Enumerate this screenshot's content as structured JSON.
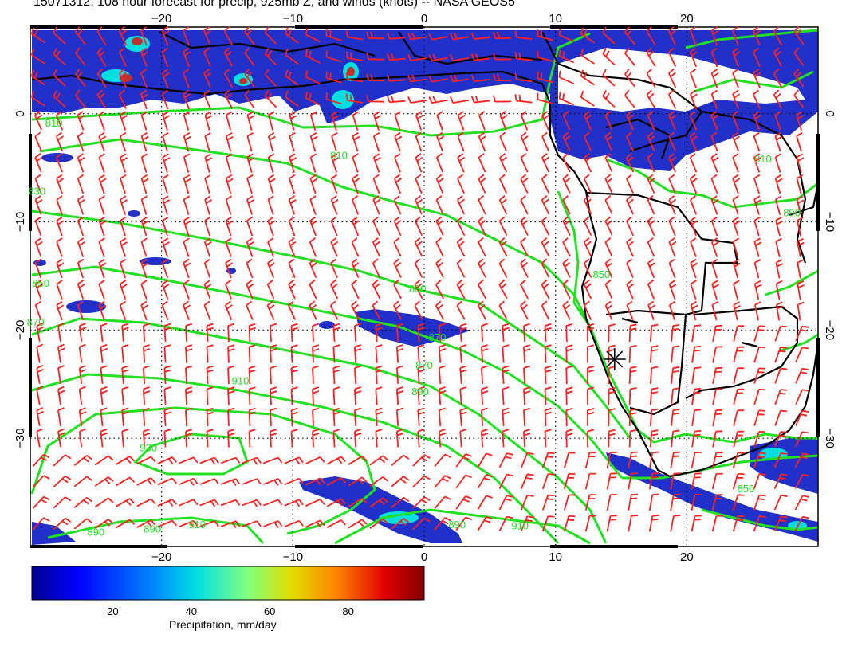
{
  "title": "15071312, 108 hour forecast for precip, 925mb Z, and winds (knots) -- NASA GEOS5",
  "map": {
    "lon_range": [
      -30,
      30
    ],
    "lat_range": [
      -40,
      8
    ],
    "lon_ticks": [
      -20,
      -10,
      0,
      10,
      20
    ],
    "lon_tick_labels": [
      "−20",
      "−10",
      "0",
      "10",
      "20"
    ],
    "lat_ticks": [
      0,
      -10,
      -20,
      -30
    ],
    "lat_tick_labels": [
      "0",
      "−10",
      "−20",
      "−30"
    ],
    "grid": "dotted",
    "colors": {
      "contour": "#22e022",
      "wind_barb": "#ff2020",
      "coast": "#000000"
    },
    "marker": {
      "name": "star-marker",
      "lon": 14.5,
      "lat": -22.7
    }
  },
  "contour_labels": [
    {
      "text": "810",
      "lon": -28.2,
      "lat": -1.2
    },
    {
      "text": "810",
      "lon": -6.5,
      "lat": -4.2
    },
    {
      "text": "830",
      "lon": -29.5,
      "lat": -7.5
    },
    {
      "text": "850",
      "lon": -29.2,
      "lat": -16.0
    },
    {
      "text": "870",
      "lon": -29.6,
      "lat": -19.6
    },
    {
      "text": "830",
      "lon": -0.5,
      "lat": -16.5
    },
    {
      "text": "870",
      "lon": 1.0,
      "lat": -21.0
    },
    {
      "text": "870",
      "lon": 0.0,
      "lat": -23.6
    },
    {
      "text": "890",
      "lon": -0.3,
      "lat": -26.0
    },
    {
      "text": "910",
      "lon": -14.0,
      "lat": -25.0
    },
    {
      "text": "930",
      "lon": -21.0,
      "lat": -31.2
    },
    {
      "text": "850",
      "lon": 13.5,
      "lat": -15.2
    },
    {
      "text": "890",
      "lon": -25.0,
      "lat": -39.0
    },
    {
      "text": "890",
      "lon": -20.7,
      "lat": -38.7
    },
    {
      "text": "910",
      "lon": -17.3,
      "lat": -38.3
    },
    {
      "text": "890",
      "lon": 2.5,
      "lat": -38.3
    },
    {
      "text": "910",
      "lon": 7.3,
      "lat": -38.4
    },
    {
      "text": "850",
      "lon": 24.5,
      "lat": -35.0
    },
    {
      "text": "810",
      "lon": 25.8,
      "lat": -4.5
    },
    {
      "text": "890",
      "lon": 28.0,
      "lat": -9.5
    }
  ],
  "colorbar": {
    "tick_values": [
      20,
      40,
      60,
      80
    ],
    "tick_labels": [
      "20",
      "40",
      "60",
      "80"
    ],
    "range": [
      0,
      100
    ],
    "label": "Precipitation, mm/day",
    "colors": [
      "#00008f",
      "#0000ff",
      "#0080ff",
      "#00ffff",
      "#80ff80",
      "#ffff00",
      "#ff8000",
      "#ff0000",
      "#800000"
    ]
  }
}
